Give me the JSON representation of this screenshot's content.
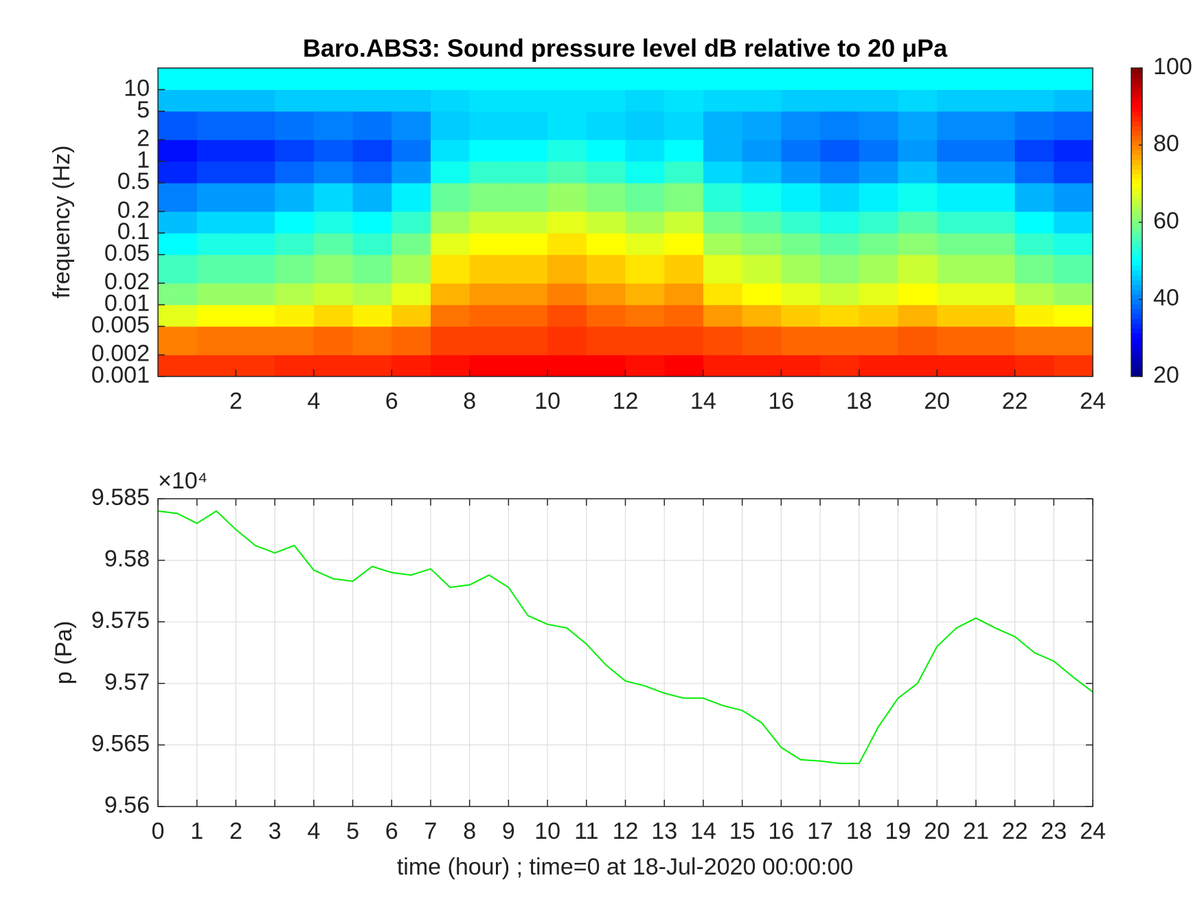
{
  "chart_data": [
    {
      "type": "heatmap",
      "title": "Baro.ABS3: Sound pressure level dB relative to 20 μPa",
      "ylabel": "frequency (Hz)",
      "log_y": true,
      "xlim": [
        0,
        24
      ],
      "xticks": [
        2,
        4,
        6,
        8,
        10,
        12,
        14,
        16,
        18,
        20,
        22,
        24
      ],
      "ylim": [
        0.001,
        20
      ],
      "yticks": [
        0.001,
        0.002,
        0.005,
        0.01,
        0.02,
        0.05,
        0.1,
        0.2,
        0.5,
        1,
        2,
        5,
        10
      ],
      "x_edges": [
        0,
        1,
        2,
        3,
        4,
        5,
        6,
        7,
        8,
        9,
        10,
        11,
        12,
        13,
        14,
        15,
        16,
        17,
        18,
        19,
        20,
        21,
        22,
        23,
        24
      ],
      "y_edges": [
        0.001,
        0.002,
        0.005,
        0.01,
        0.02,
        0.05,
        0.1,
        0.2,
        0.5,
        1,
        2,
        5,
        10,
        20
      ],
      "z": [
        [
          86,
          86,
          86,
          87,
          87,
          87,
          88,
          89,
          90,
          90,
          90,
          90,
          89,
          90,
          88,
          88,
          88,
          87,
          88,
          88,
          88,
          88,
          87,
          86
        ],
        [
          80,
          81,
          81,
          81,
          82,
          81,
          82,
          85,
          85,
          85,
          86,
          85,
          85,
          85,
          84,
          83,
          82,
          82,
          82,
          83,
          82,
          82,
          81,
          81
        ],
        [
          68,
          70,
          70,
          71,
          73,
          71,
          74,
          81,
          82,
          82,
          84,
          82,
          81,
          82,
          78,
          76,
          74,
          73,
          74,
          76,
          74,
          74,
          71,
          70
        ],
        [
          60,
          62,
          62,
          64,
          66,
          64,
          68,
          76,
          78,
          78,
          80,
          78,
          76,
          78,
          72,
          70,
          68,
          66,
          68,
          70,
          68,
          68,
          64,
          62
        ],
        [
          55,
          57,
          57,
          59,
          61,
          59,
          63,
          72,
          74,
          74,
          76,
          74,
          72,
          74,
          68,
          66,
          63,
          61,
          63,
          66,
          63,
          63,
          59,
          57
        ],
        [
          50,
          52,
          52,
          54,
          57,
          54,
          59,
          68,
          70,
          70,
          72,
          70,
          68,
          70,
          63,
          61,
          59,
          57,
          59,
          61,
          59,
          59,
          54,
          52
        ],
        [
          45,
          47,
          47,
          50,
          52,
          50,
          54,
          63,
          66,
          66,
          68,
          66,
          63,
          66,
          59,
          57,
          54,
          52,
          54,
          57,
          54,
          54,
          50,
          47
        ],
        [
          40,
          42,
          42,
          44,
          47,
          44,
          49,
          58,
          60,
          60,
          62,
          60,
          58,
          60,
          53,
          51,
          49,
          47,
          49,
          51,
          49,
          49,
          44,
          42
        ],
        [
          33,
          35,
          35,
          38,
          40,
          38,
          42,
          51,
          54,
          54,
          56,
          54,
          51,
          54,
          47,
          45,
          42,
          40,
          42,
          45,
          42,
          42,
          38,
          35
        ],
        [
          31,
          33,
          33,
          35,
          37,
          35,
          39,
          48,
          50,
          50,
          52,
          50,
          48,
          50,
          44,
          42,
          39,
          37,
          39,
          42,
          39,
          39,
          35,
          33
        ],
        [
          37,
          38,
          38,
          39,
          40,
          39,
          41,
          46,
          47,
          47,
          48,
          47,
          46,
          47,
          44,
          43,
          41,
          40,
          41,
          43,
          41,
          41,
          39,
          38
        ],
        [
          45,
          45,
          45,
          46,
          46,
          46,
          46,
          47,
          48,
          48,
          48,
          48,
          47,
          48,
          47,
          47,
          46,
          46,
          46,
          47,
          46,
          46,
          46,
          45
        ],
        [
          50,
          50,
          50,
          50,
          50,
          50,
          50,
          50,
          50,
          50,
          50,
          50,
          50,
          50,
          50,
          50,
          50,
          50,
          50,
          50,
          50,
          50,
          50,
          50
        ]
      ],
      "colorbar": {
        "lim": [
          20,
          100
        ],
        "ticks": [
          20,
          40,
          60,
          80,
          100
        ]
      }
    },
    {
      "type": "line",
      "ylabel": "p (Pa)",
      "xlabel": "time (hour) ; time=0 at 18-Jul-2020 00:00:00",
      "axis_multiplier": "×10⁴",
      "color": "#00ee00",
      "grid": true,
      "xlim": [
        0,
        24
      ],
      "xticks": [
        0,
        1,
        2,
        3,
        4,
        5,
        6,
        7,
        8,
        9,
        10,
        11,
        12,
        13,
        14,
        15,
        16,
        17,
        18,
        19,
        20,
        21,
        22,
        23,
        24
      ],
      "ylim": [
        95600,
        95850
      ],
      "yticks": [
        {
          "value": 95600,
          "label": "9.56"
        },
        {
          "value": 95650,
          "label": "9.565"
        },
        {
          "value": 95700,
          "label": "9.57"
        },
        {
          "value": 95750,
          "label": "9.575"
        },
        {
          "value": 95800,
          "label": "9.58"
        },
        {
          "value": 95850,
          "label": "9.585"
        }
      ],
      "x": [
        0,
        0.5,
        1,
        1.5,
        2,
        2.5,
        3,
        3.5,
        4,
        4.5,
        5,
        5.5,
        6,
        6.5,
        7,
        7.5,
        8,
        8.5,
        9,
        9.5,
        10,
        10.5,
        11,
        11.5,
        12,
        12.5,
        13,
        13.5,
        14,
        14.5,
        15,
        15.5,
        16,
        16.5,
        17,
        17.5,
        18,
        18.5,
        19,
        19.5,
        20,
        20.5,
        21,
        21.5,
        22,
        22.5,
        23,
        23.5,
        24
      ],
      "values": [
        95840,
        95838,
        95830,
        95840,
        95825,
        95812,
        95806,
        95812,
        95792,
        95785,
        95783,
        95795,
        95790,
        95788,
        95793,
        95778,
        95780,
        95788,
        95778,
        95755,
        95748,
        95745,
        95732,
        95715,
        95702,
        95698,
        95692,
        95688,
        95688,
        95682,
        95678,
        95668,
        95648,
        95638,
        95637,
        95635,
        95635,
        95665,
        95688,
        95700,
        95730,
        95745,
        95753,
        95745,
        95738,
        95725,
        95718,
        95705,
        95693
      ]
    }
  ]
}
